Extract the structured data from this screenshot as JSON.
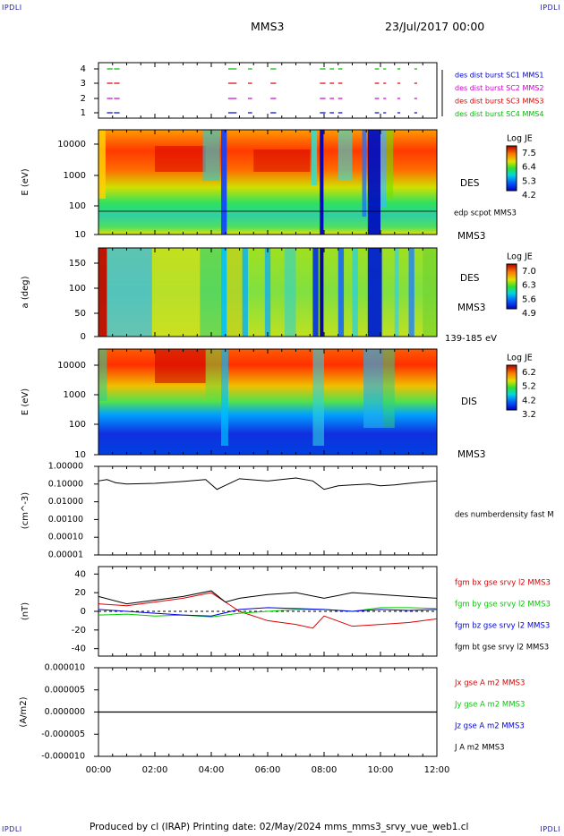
{
  "header": {
    "corner_left_top": "IPDLI",
    "corner_right_top": "IPDLI",
    "corner_left_bottom": "IPDLI",
    "corner_right_bottom": "IPDLI",
    "spacecraft": "MMS3",
    "datetime": "23/Jul/2017 00:00",
    "footer": "Produced by cl (IRAP)   Printing date: 02/May/2024   mms_mms3_srvy_vue_web1.cl"
  },
  "colors": {
    "sc1": "#0000cc",
    "sc2": "#cc00cc",
    "sc3": "#dd0000",
    "sc4": "#00bb00",
    "bx": "#dd0000",
    "by": "#00cc00",
    "bz": "#0000dd",
    "bt": "#000000"
  },
  "chart_data": [
    {
      "type": "scatter",
      "name": "burst-availability",
      "yticks": [
        "4",
        "3",
        "2",
        "1"
      ],
      "legend": [
        "des dist burst SC1 MMS1",
        "des dist burst SC2 MMS2",
        "des dist burst SC3 MMS3",
        "des dist burst SC4 MMS4"
      ],
      "segments_hours": [
        [
          0.3,
          0.5
        ],
        [
          0.55,
          0.75
        ],
        [
          4.6,
          4.9
        ],
        [
          5.3,
          5.45
        ],
        [
          6.1,
          6.3
        ],
        [
          7.85,
          8.05
        ],
        [
          8.2,
          8.35
        ],
        [
          8.5,
          8.65
        ],
        [
          9.8,
          9.95
        ],
        [
          10.1,
          10.2
        ],
        [
          10.6,
          10.7
        ],
        [
          11.2,
          11.3
        ]
      ]
    },
    {
      "type": "heatmap",
      "name": "des-energy-spectrogram",
      "ylabel": "E (eV)",
      "yticks": [
        "10000",
        "1000",
        "100",
        "10"
      ],
      "ylim": [
        10,
        30000
      ],
      "yscale": "log",
      "right_labels": [
        "DES",
        "edp scpot MMS3",
        "MMS3"
      ],
      "colorbar": {
        "label": "Log JE",
        "ticks": [
          "7.5",
          "6.4",
          "5.3",
          "4.2"
        ],
        "range": [
          4.2,
          7.5
        ]
      }
    },
    {
      "type": "heatmap",
      "name": "des-pitch-angle",
      "ylabel": "a (deg)",
      "yticks": [
        "150",
        "100",
        "50",
        "0"
      ],
      "ylim": [
        0,
        180
      ],
      "right_labels": [
        "DES",
        "MMS3",
        "139-185 eV"
      ],
      "colorbar": {
        "label": "Log JE",
        "ticks": [
          "7.0",
          "6.3",
          "5.6",
          "4.9"
        ],
        "range": [
          4.9,
          7.0
        ]
      }
    },
    {
      "type": "heatmap",
      "name": "dis-energy-spectrogram",
      "ylabel": "E (eV)",
      "yticks": [
        "10000",
        "1000",
        "100",
        "10"
      ],
      "ylim": [
        10,
        30000
      ],
      "yscale": "log",
      "right_labels": [
        "DIS",
        "MMS3"
      ],
      "colorbar": {
        "label": "Log JE",
        "ticks": [
          "6.2",
          "5.2",
          "4.2",
          "3.2"
        ],
        "range": [
          3.2,
          6.2
        ]
      }
    },
    {
      "type": "line",
      "name": "number-density",
      "ylabel": "(cm^-3)",
      "yticks": [
        "1.00000",
        "0.10000",
        "0.01000",
        "0.00100",
        "0.00010",
        "0.00001"
      ],
      "ylim": [
        1e-05,
        1
      ],
      "yscale": "log",
      "series": [
        {
          "name": "des numberdensity fast M",
          "x": [
            0,
            0.3,
            0.6,
            1,
            2,
            3,
            3.8,
            4.2,
            4.6,
            5,
            6,
            7,
            7.6,
            8,
            8.5,
            9,
            9.6,
            10,
            10.5,
            11,
            11.5,
            12
          ],
          "y": [
            0.15,
            0.18,
            0.12,
            0.1,
            0.11,
            0.14,
            0.18,
            0.05,
            0.1,
            0.2,
            0.15,
            0.22,
            0.15,
            0.05,
            0.08,
            0.09,
            0.1,
            0.08,
            0.09,
            0.11,
            0.13,
            0.15
          ]
        }
      ]
    },
    {
      "type": "line",
      "name": "magnetic-field",
      "ylabel": "(nT)",
      "yticks": [
        "40",
        "20",
        "0",
        "-20",
        "-40"
      ],
      "ylim": [
        -48,
        48
      ],
      "series": [
        {
          "name": "fgm bx gse srvy l2 MMS3",
          "x": [
            0,
            1,
            2,
            3,
            4,
            4.5,
            5,
            6,
            7,
            7.6,
            8,
            9,
            10,
            11,
            12
          ],
          "y": [
            8,
            6,
            10,
            14,
            20,
            10,
            0,
            -10,
            -14,
            -18,
            -5,
            -16,
            -14,
            -12,
            -8
          ]
        },
        {
          "name": "fgm by gse srvy l2 MMS3",
          "x": [
            0,
            1,
            2,
            3,
            4,
            5,
            6,
            7,
            8,
            9,
            10,
            11,
            12
          ],
          "y": [
            -4,
            -3,
            -5,
            -4,
            -6,
            -2,
            0,
            2,
            2,
            0,
            4,
            4,
            3
          ]
        },
        {
          "name": "fgm bz gse srvy l2 MMS3",
          "x": [
            0,
            1,
            2,
            3,
            4,
            5,
            6,
            7,
            8,
            9,
            10,
            11,
            12
          ],
          "y": [
            2,
            0,
            -2,
            -4,
            -5,
            2,
            4,
            3,
            2,
            0,
            2,
            1,
            2
          ]
        },
        {
          "name": "fgm bt gse srvy l2 MMS3",
          "x": [
            0,
            1,
            2,
            3,
            4,
            4.5,
            5,
            6,
            7,
            8,
            9,
            10,
            11,
            12
          ],
          "y": [
            16,
            8,
            12,
            16,
            22,
            10,
            14,
            18,
            20,
            14,
            20,
            18,
            16,
            14
          ]
        }
      ]
    },
    {
      "type": "line",
      "name": "current-density",
      "ylabel": "(A/m2)",
      "yticks": [
        "0.000010",
        "0.000005",
        "0.000000",
        "-0.000005",
        "-0.000010"
      ],
      "ylim": [
        -1e-05,
        1e-05
      ],
      "xlabel": "",
      "xticks": [
        "00:00",
        "02:00",
        "04:00",
        "06:00",
        "08:00",
        "10:00",
        "12:00"
      ],
      "series": [
        {
          "name": "Jx gse A m2 MMS3",
          "x": [
            0,
            12
          ],
          "y": [
            0,
            0
          ]
        },
        {
          "name": "Jy gse A m2 MMS3",
          "x": [
            0,
            12
          ],
          "y": [
            0,
            0
          ]
        },
        {
          "name": "Jz gse A m2 MMS3",
          "x": [
            0,
            12
          ],
          "y": [
            0,
            0
          ]
        },
        {
          "name": "J A m2 MMS3",
          "x": [
            0,
            12
          ],
          "y": [
            0,
            0
          ]
        }
      ]
    }
  ]
}
